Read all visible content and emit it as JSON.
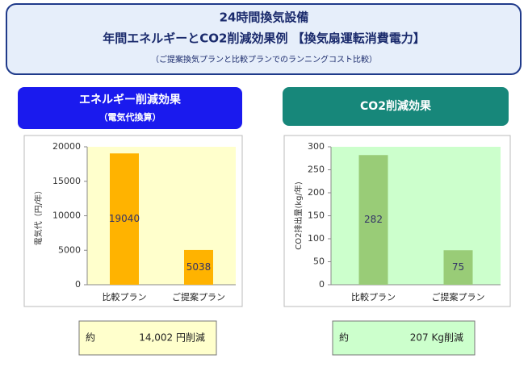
{
  "header": {
    "title": "24時間換気設備",
    "title2": "年間エネルギーとCO2削減効果例 【換気扇運転消費電力】",
    "subtitle": "（ご提案換気プランと比較プランでのランニングコスト比較）"
  },
  "chart_data": [
    {
      "type": "bar",
      "title": "エネルギー削減効果",
      "subtitle": "（電気代換算）",
      "y_label": "電気代（円/年）",
      "categories": [
        "比較プラン",
        "ご提案プラン"
      ],
      "values": [
        19040,
        5038
      ],
      "color": "#ffb300",
      "background": "#ffffcc",
      "ylim": [
        0,
        20000
      ],
      "yticks": [
        0,
        5000,
        10000,
        15000,
        20000
      ],
      "summary": {
        "prefix": "約",
        "text": "14,002 円削減"
      }
    },
    {
      "type": "bar",
      "title": "CO2削減効果",
      "y_label": "CO2排出量(kg/年)",
      "categories": [
        "比較プラン",
        "ご提案プラン"
      ],
      "values": [
        282,
        75
      ],
      "color": "#99cc77",
      "background": "#ccffcc",
      "ylim": [
        0,
        300
      ],
      "yticks": [
        0,
        50,
        100,
        150,
        200,
        250,
        300
      ],
      "summary": {
        "prefix": "約",
        "text": "207 Kg削減"
      }
    }
  ]
}
